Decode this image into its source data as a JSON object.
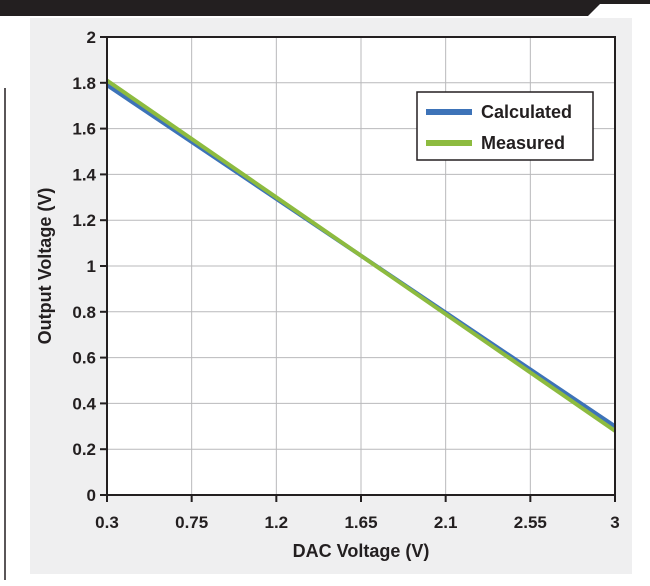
{
  "chart_data": {
    "type": "line",
    "title": "",
    "xlabel": "DAC Voltage (V)",
    "ylabel": "Output Voltage (V)",
    "xlim": [
      0.3,
      3
    ],
    "ylim": [
      0,
      2
    ],
    "x_ticks": [
      "0.3",
      "0.75",
      "1.2",
      "1.65",
      "2.1",
      "2.55",
      "3"
    ],
    "y_ticks": [
      "0",
      "0.2",
      "0.4",
      "0.6",
      "0.8",
      "1",
      "1.2",
      "1.4",
      "1.6",
      "1.8",
      "2"
    ],
    "grid": true,
    "legend_position": "top-right",
    "series": [
      {
        "name": "Calculated",
        "color": "#3d73b8",
        "x": [
          0.3,
          3
        ],
        "y": [
          1.79,
          0.3
        ]
      },
      {
        "name": "Measured",
        "color": "#8dbb3f",
        "x": [
          0.3,
          3
        ],
        "y": [
          1.81,
          0.28
        ]
      }
    ]
  },
  "colors": {
    "panel_background": "#efeff0",
    "gridline": "#b9b9bb",
    "axis": "#231f20",
    "banner": "#231f20"
  }
}
